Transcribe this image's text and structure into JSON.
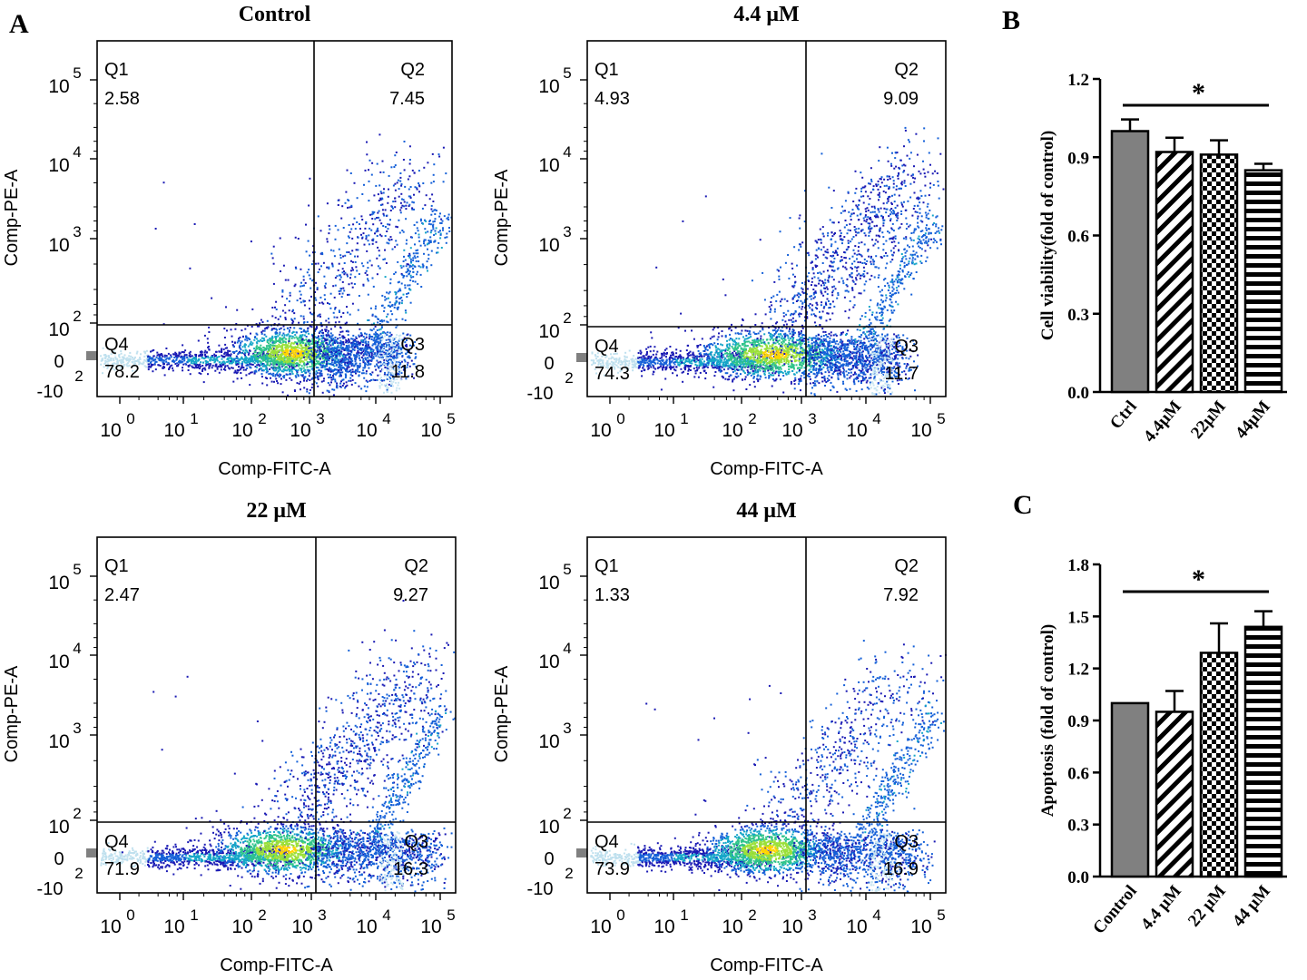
{
  "figure": {
    "panel_labels": [
      "A",
      "B",
      "C"
    ]
  },
  "chart_data": [
    {
      "type": "scatter",
      "panel": "A",
      "title": "Control",
      "xlabel": "Comp-FITC-A",
      "ylabel": "Comp-PE-A",
      "x_ticks": [
        "0",
        "1",
        "2",
        "3",
        "4",
        "5"
      ],
      "y_ticks": [
        "5",
        "4",
        "3",
        "2"
      ],
      "y_low_labels": [
        "0",
        "-10",
        "2"
      ],
      "quadrants": [
        {
          "name": "Q1",
          "value": "2.58"
        },
        {
          "name": "Q2",
          "value": "7.45"
        },
        {
          "name": "Q3",
          "value": "11.8"
        },
        {
          "name": "Q4",
          "value": "78.2"
        }
      ]
    },
    {
      "type": "scatter",
      "panel": "A",
      "title": "4.4 μM",
      "xlabel": "Comp-FITC-A",
      "ylabel": "Comp-PE-A",
      "x_ticks": [
        "0",
        "1",
        "2",
        "3",
        "4",
        "5"
      ],
      "y_ticks": [
        "5",
        "4",
        "3",
        "2"
      ],
      "y_low_labels": [
        "0",
        "-10",
        "2"
      ],
      "quadrants": [
        {
          "name": "Q1",
          "value": "4.93"
        },
        {
          "name": "Q2",
          "value": "9.09"
        },
        {
          "name": "Q3",
          "value": "11.7"
        },
        {
          "name": "Q4",
          "value": "74.3"
        }
      ]
    },
    {
      "type": "scatter",
      "panel": "A",
      "title": "22 μM",
      "xlabel": "Comp-FITC-A",
      "ylabel": "Comp-PE-A",
      "x_ticks": [
        "0",
        "1",
        "2",
        "3",
        "4",
        "5"
      ],
      "y_ticks": [
        "5",
        "4",
        "3",
        "2"
      ],
      "y_low_labels": [
        "0",
        "-10",
        "2"
      ],
      "quadrants": [
        {
          "name": "Q1",
          "value": "2.47"
        },
        {
          "name": "Q2",
          "value": "9.27"
        },
        {
          "name": "Q3",
          "value": "16.3"
        },
        {
          "name": "Q4",
          "value": "71.9"
        }
      ]
    },
    {
      "type": "scatter",
      "panel": "A",
      "title": "44 μM",
      "xlabel": "Comp-FITC-A",
      "ylabel": "Comp-PE-A",
      "x_ticks": [
        "0",
        "1",
        "2",
        "3",
        "4",
        "5"
      ],
      "y_ticks": [
        "5",
        "4",
        "3",
        "2"
      ],
      "y_low_labels": [
        "0",
        "-10",
        "2"
      ],
      "quadrants": [
        {
          "name": "Q1",
          "value": "1.33"
        },
        {
          "name": "Q2",
          "value": "7.92"
        },
        {
          "name": "Q3",
          "value": "16.9"
        },
        {
          "name": "Q4",
          "value": "73.9"
        }
      ]
    },
    {
      "type": "bar",
      "panel": "B",
      "categories": [
        "Ctrl",
        "4.4μM",
        "22μM",
        "44μM"
      ],
      "values": [
        1.0,
        0.92,
        0.91,
        0.85
      ],
      "errors": [
        0.045,
        0.055,
        0.055,
        0.025
      ],
      "fills": [
        "solid",
        "diagonal",
        "checker",
        "horizontal"
      ],
      "ylabel": "Cell viability(fold of control)",
      "ylim": [
        0,
        1.2
      ],
      "yticks": [
        "0.0",
        "0.3",
        "0.6",
        "0.9",
        "1.2"
      ],
      "significance": "*",
      "bar_color": "#808080"
    },
    {
      "type": "bar",
      "panel": "C",
      "categories": [
        "Control",
        "4.4 μM",
        "22 μM",
        "44 μM"
      ],
      "values": [
        1.0,
        0.95,
        1.29,
        1.44
      ],
      "errors": [
        0.0,
        0.12,
        0.17,
        0.09
      ],
      "fills": [
        "solid",
        "diagonal",
        "checker",
        "horizontal"
      ],
      "ylabel": "Apoptosis (fold of control)",
      "ylim": [
        0,
        1.8
      ],
      "yticks": [
        "0.0",
        "0.3",
        "0.6",
        "0.9",
        "1.2",
        "1.5",
        "1.8"
      ],
      "significance": "*",
      "bar_color": "#808080"
    }
  ]
}
